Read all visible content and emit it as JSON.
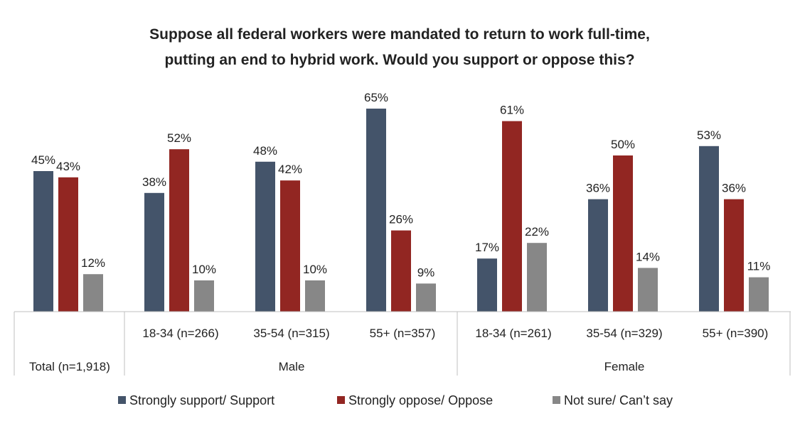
{
  "chart_data": {
    "type": "bar",
    "title_lines": [
      "Suppose all federal workers were mandated to return to work full-time,",
      "putting an end to hybrid work. Would you support or oppose this?"
    ],
    "categories": [
      "Total (n=1,918)",
      "18-34 (n=266)",
      "35-54 (n=315)",
      "55+ (n=357)",
      "18-34 (n=261)",
      "35-54 (n=329)",
      "55+ (n=390)"
    ],
    "groups": [
      {
        "label": "",
        "span": [
          0,
          0
        ]
      },
      {
        "label": "Male",
        "span": [
          1,
          3
        ]
      },
      {
        "label": "Female",
        "span": [
          4,
          6
        ]
      }
    ],
    "series": [
      {
        "name": "Strongly support/ Support",
        "color": "#44546a",
        "values": [
          45,
          38,
          48,
          65,
          17,
          36,
          53
        ],
        "labels": [
          "45%",
          "38%",
          "48%",
          "65%",
          "17%",
          "36%",
          "53%"
        ]
      },
      {
        "name": "Strongly oppose/ Oppose",
        "color": "#922622",
        "values": [
          43,
          52,
          42,
          26,
          61,
          50,
          36
        ],
        "labels": [
          "43%",
          "52%",
          "42%",
          "26%",
          "61%",
          "50%",
          "36%"
        ]
      },
      {
        "name": "Not sure/ Can’t say",
        "color": "#878787",
        "values": [
          12,
          10,
          10,
          9,
          22,
          14,
          11
        ],
        "labels": [
          "12%",
          "10%",
          "10%",
          "9%",
          "22%",
          "14%",
          "11%"
        ]
      }
    ],
    "unit": "%",
    "ylim": [
      0,
      70
    ],
    "grid": false,
    "legend_position": "bottom"
  }
}
